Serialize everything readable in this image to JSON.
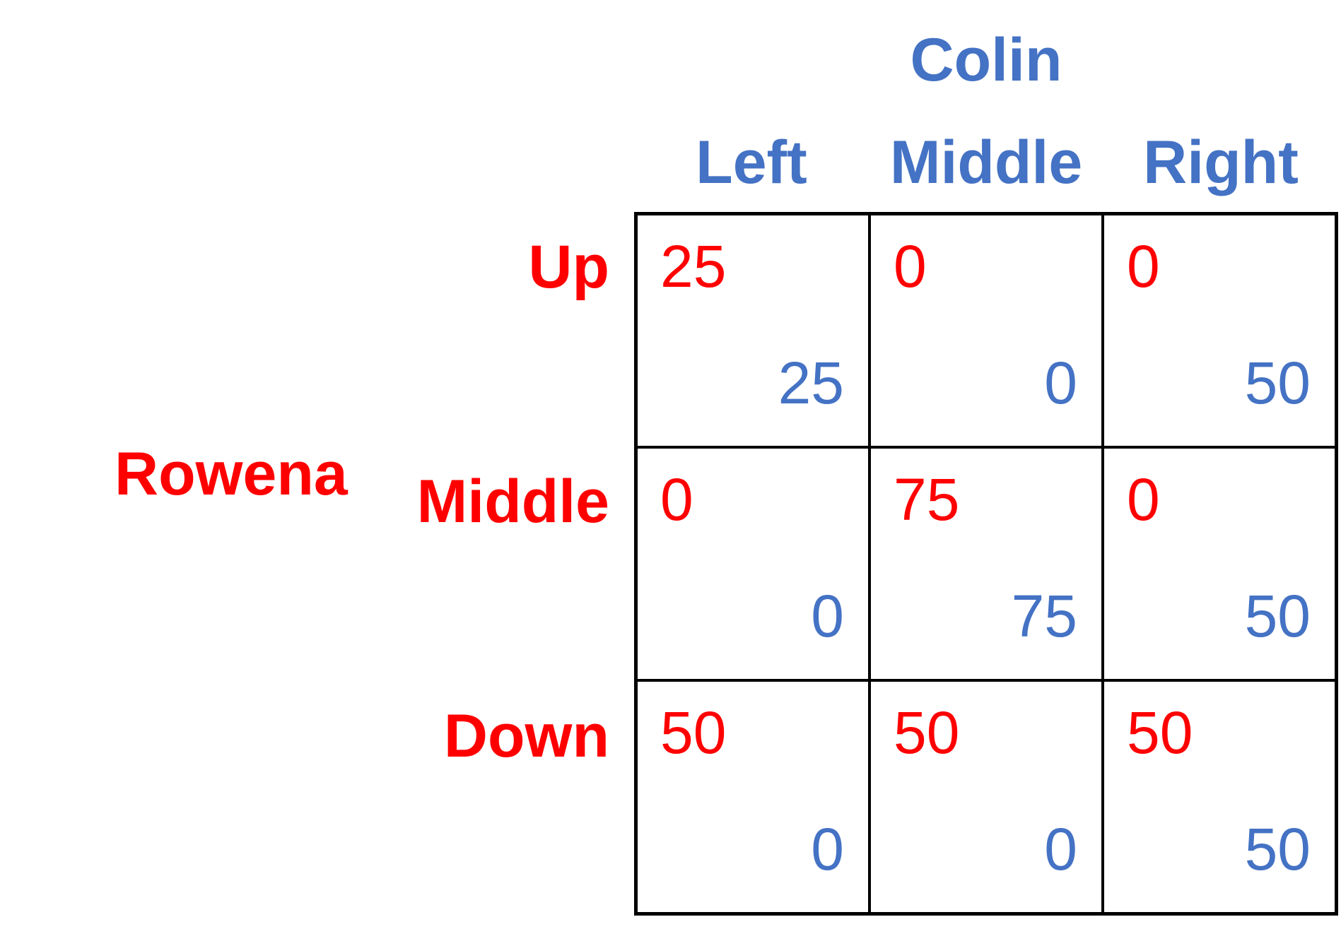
{
  "colors": {
    "row_player": "#FF0000",
    "col_player": "#4472C4",
    "grid": "#000000"
  },
  "column_player": "Colin",
  "row_player": "Rowena",
  "columns": [
    "Left",
    "Middle",
    "Right"
  ],
  "rows": [
    "Up",
    "Middle",
    "Down"
  ],
  "payoffs": [
    [
      {
        "row": "25",
        "col": "25"
      },
      {
        "row": "0",
        "col": "0"
      },
      {
        "row": "0",
        "col": "50"
      }
    ],
    [
      {
        "row": "0",
        "col": "0"
      },
      {
        "row": "75",
        "col": "75"
      },
      {
        "row": "0",
        "col": "50"
      }
    ],
    [
      {
        "row": "50",
        "col": "0"
      },
      {
        "row": "50",
        "col": "0"
      },
      {
        "row": "50",
        "col": "50"
      }
    ]
  ]
}
